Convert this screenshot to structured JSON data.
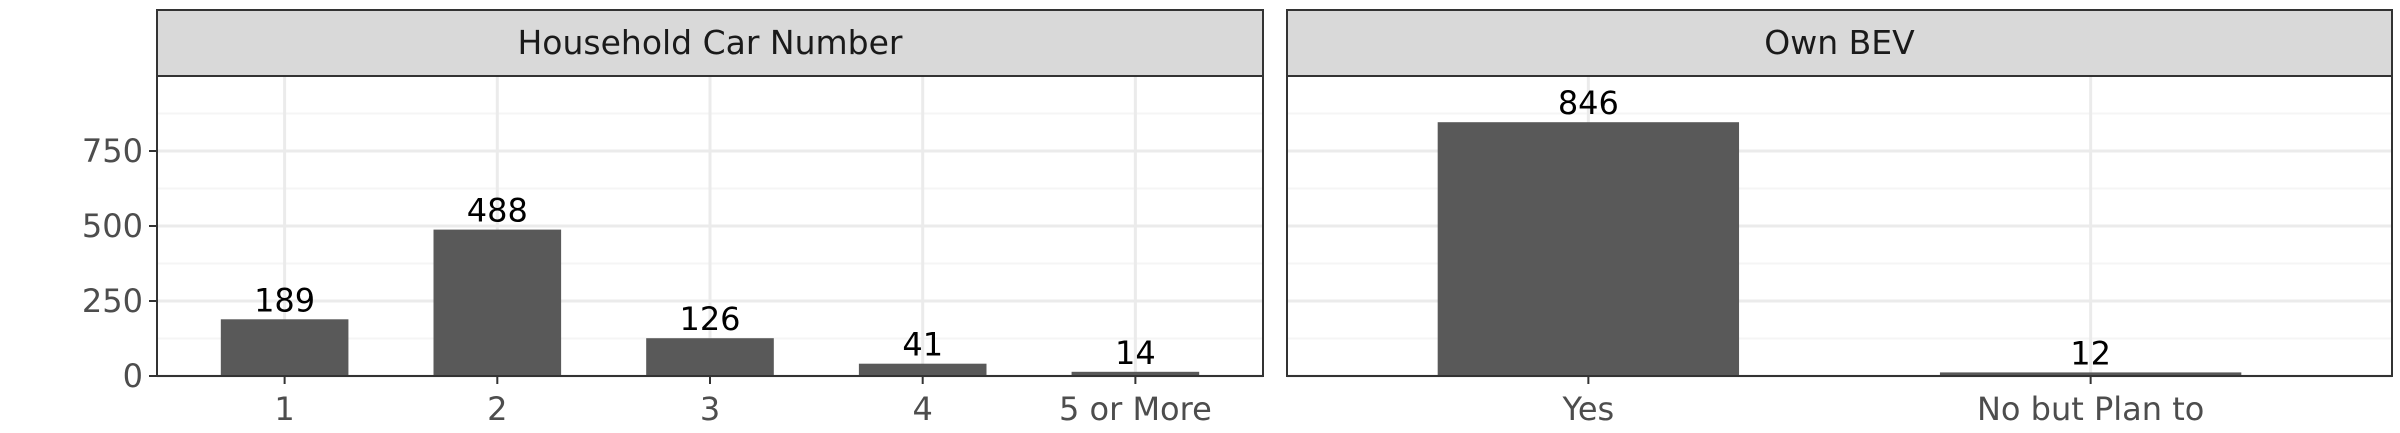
{
  "chart_data": {
    "type": "bar",
    "ylim": [
      0,
      1000
    ],
    "y_ticks": [
      0,
      250,
      500,
      750
    ],
    "grid": true,
    "colors": {
      "bar": "#595959",
      "strip": "#d9d9d9",
      "grid_major": "#ebebeb",
      "grid_minor": "#f5f5f5",
      "panel_border": "#333333"
    },
    "panels": [
      {
        "title": "Household Car Number",
        "categories": [
          "1",
          "2",
          "3",
          "4",
          "5 or More"
        ],
        "values": [
          189,
          488,
          126,
          41,
          14
        ]
      },
      {
        "title": "Own BEV",
        "categories": [
          "Yes",
          "No but Plan to"
        ],
        "values": [
          846,
          12
        ]
      }
    ]
  }
}
